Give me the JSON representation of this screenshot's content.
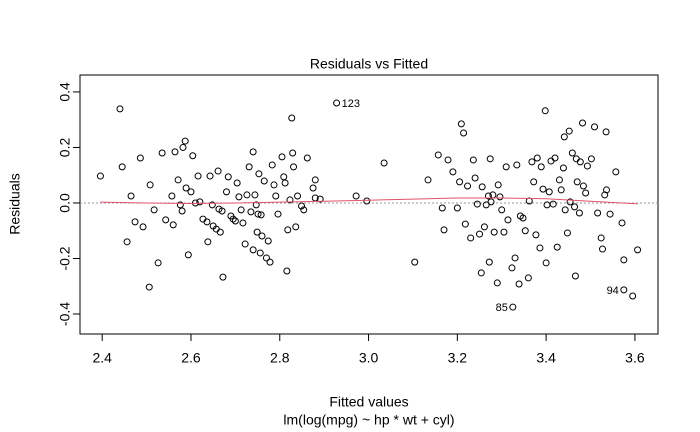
{
  "chart_data": {
    "type": "scatter",
    "title": "Residuals vs Fitted",
    "xlabel": "Fitted values",
    "subtitle": "lm(log(mpg) ~ hp * wt + cyl)",
    "ylabel": "Residuals",
    "xlim": [
      2.35,
      3.652
    ],
    "ylim": [
      -0.472,
      0.461
    ],
    "xticks": [
      2.4,
      2.6,
      2.8,
      {
        "value": 3,
        "label": "3.0"
      },
      3.2,
      3.4,
      3.6
    ],
    "yticks": [
      -0.4,
      -0.2,
      {
        "value": 0,
        "label": "0.0"
      },
      0.2,
      0.4
    ],
    "hline": 0,
    "series": [
      {
        "color": "#000000",
        "x": [
          2.396,
          2.44,
          2.445,
          2.456,
          2.465,
          2.474,
          2.486,
          2.492,
          2.506,
          2.508,
          2.517,
          2.526,
          2.535,
          2.543,
          2.557,
          2.56,
          2.564,
          2.571,
          2.576,
          2.58,
          2.582,
          2.587,
          2.589,
          2.594,
          2.6,
          2.604,
          2.61,
          2.616,
          2.62,
          2.627,
          2.636,
          2.638,
          2.643,
          2.648,
          2.65,
          2.657,
          2.661,
          2.663,
          2.666,
          2.67,
          2.672,
          2.68,
          2.684,
          2.69,
          2.695,
          2.7,
          2.704,
          2.708,
          2.713,
          2.717,
          2.722,
          2.726,
          2.731,
          2.735,
          2.74,
          2.74,
          2.744,
          2.747,
          2.749,
          2.751,
          2.753,
          2.756,
          2.758,
          2.76,
          2.765,
          2.77,
          2.774,
          2.778,
          2.783,
          2.787,
          2.791,
          2.796,
          2.805,
          2.809,
          2.812,
          2.816,
          2.818,
          2.823,
          2.827,
          2.829,
          2.831,
          2.836,
          2.84,
          2.849,
          2.854,
          2.862,
          2.875,
          2.88,
          2.88,
          2.891,
          2.928,
          2.972,
          2.996,
          3.035,
          3.104,
          3.134,
          3.157,
          3.166,
          3.17,
          3.179,
          3.19,
          3.2,
          3.205,
          3.209,
          3.214,
          3.218,
          3.223,
          3.23,
          3.236,
          3.24,
          3.245,
          3.25,
          3.254,
          3.256,
          3.261,
          3.265,
          3.27,
          3.272,
          3.274,
          3.276,
          3.28,
          3.283,
          3.29,
          3.292,
          3.296,
          3.3,
          3.305,
          3.31,
          3.314,
          3.323,
          3.325,
          3.33,
          3.334,
          3.339,
          3.342,
          3.348,
          3.353,
          3.36,
          3.362,
          3.368,
          3.372,
          3.377,
          3.38,
          3.386,
          3.389,
          3.393,
          3.398,
          3.4,
          3.402,
          3.407,
          3.411,
          3.416,
          3.42,
          3.425,
          3.43,
          3.434,
          3.439,
          3.441,
          3.443,
          3.448,
          3.452,
          3.454,
          3.459,
          3.464,
          3.466,
          3.468,
          3.47,
          3.475,
          3.477,
          3.482,
          3.484,
          3.489,
          3.493,
          3.502,
          3.509,
          3.516,
          3.524,
          3.527,
          3.532,
          3.535,
          3.536,
          3.544,
          3.557,
          3.571,
          3.575,
          3.575,
          3.595,
          3.606
        ],
        "values": [
          0.097,
          0.339,
          0.13,
          -0.14,
          0.025,
          -0.068,
          0.162,
          -0.086,
          -0.303,
          0.065,
          -0.025,
          -0.216,
          0.18,
          -0.061,
          0.025,
          -0.079,
          0.184,
          0.083,
          -0.007,
          -0.029,
          0.2,
          0.223,
          0.054,
          -0.187,
          0.04,
          0.17,
          0,
          0.097,
          0.004,
          -0.058,
          -0.068,
          -0.14,
          0.097,
          -0.007,
          -0.083,
          -0.094,
          0.115,
          -0.022,
          -0.105,
          -0.029,
          -0.267,
          0.04,
          0.094,
          -0.047,
          -0.058,
          -0.065,
          0.072,
          0.022,
          -0.025,
          -0.072,
          -0.148,
          0.029,
          0.13,
          -0.032,
          0.184,
          -0.169,
          0.029,
          -0.007,
          -0.105,
          -0.04,
          0.105,
          -0.18,
          -0.043,
          -0.119,
          0.079,
          -0.198,
          -0.137,
          -0.213,
          0.137,
          0.065,
          0.025,
          -0.04,
          0.166,
          0.094,
          0.072,
          -0.245,
          -0.097,
          0.011,
          0.306,
          0.18,
          0.13,
          -0.086,
          0.025,
          -0.011,
          -0.025,
          0.162,
          0.054,
          0.083,
          0.018,
          0.014,
          0.36,
          0.025,
          0.007,
          0.144,
          -0.213,
          0.083,
          0.173,
          -0.018,
          -0.097,
          0.155,
          0.112,
          -0.018,
          0.076,
          0.285,
          0.252,
          -0.076,
          0.061,
          -0.126,
          0.155,
          0.09,
          -0.004,
          -0.112,
          -0.252,
          0.058,
          -0.086,
          -0.007,
          0.025,
          -0.213,
          0.159,
          0.004,
          0.029,
          -0.105,
          -0.288,
          0.065,
          0.022,
          -0.025,
          -0.105,
          0.13,
          -0.061,
          -0.234,
          -0.375,
          -0.198,
          0.137,
          -0.292,
          -0.047,
          -0.054,
          -0.1,
          -0.27,
          0.007,
          0.148,
          0.076,
          -0.115,
          0.162,
          -0.162,
          0.13,
          0.05,
          0.332,
          -0.216,
          -0.007,
          0.04,
          0.151,
          -0.004,
          0.162,
          -0.159,
          0.083,
          0.047,
          0.126,
          0.238,
          -0.025,
          -0.108,
          0.259,
          0.004,
          0.18,
          -0.014,
          -0.263,
          0.159,
          0.076,
          -0.036,
          0.148,
          0.288,
          0.061,
          0.036,
          0.133,
          0.159,
          0.274,
          -0.036,
          -0.126,
          -0.166,
          0.029,
          0.256,
          0.047,
          -0.04,
          0.112,
          -0.072,
          -0.205,
          -0.313,
          -0.335,
          -0.169
        ]
      }
    ],
    "smooth": {
      "color": "#df536b",
      "x": [
        2.396,
        2.5,
        2.6,
        2.7,
        2.8,
        2.9,
        3.0,
        3.1,
        3.2,
        3.3,
        3.4,
        3.5,
        3.606
      ],
      "values": [
        0.003,
        0.0,
        -0.002,
        0.0,
        0.003,
        0.006,
        0.01,
        0.014,
        0.018,
        0.018,
        0.015,
        0.006,
        -0.003
      ]
    },
    "annotations": [
      {
        "text": "123",
        "x": 2.928,
        "y": 0.36
      },
      {
        "text": "85",
        "x": 3.325,
        "y": -0.375
      },
      {
        "text": "94",
        "x": 3.575,
        "y": -0.313
      }
    ]
  }
}
